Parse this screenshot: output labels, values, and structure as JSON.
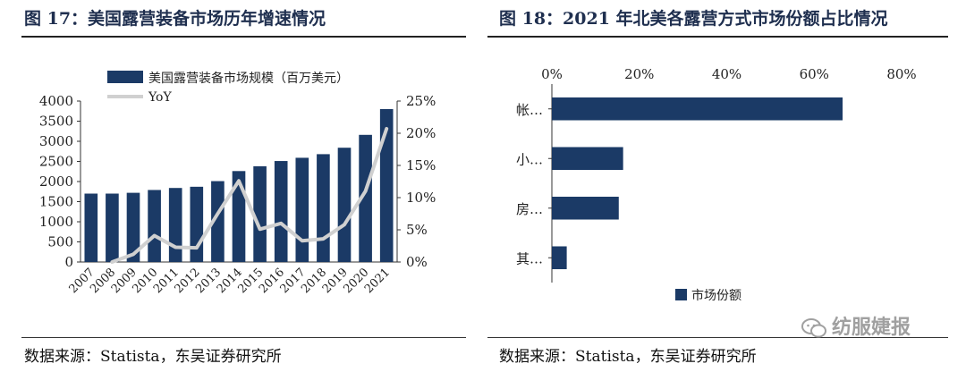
{
  "left": {
    "title": "图 17：美国露营装备市场历年增速情况",
    "source": "数据来源：Statista，东吴证券研究所"
  },
  "right": {
    "title": "图 18：2021 年北美各露营方式市场份额占比情况",
    "source": "数据来源：Statista，东吴证券研究所"
  },
  "watermark": {
    "text": "纺服婕报"
  },
  "chart_data": [
    {
      "type": "bar",
      "categories": [
        "2007",
        "2008",
        "2009",
        "2010",
        "2011",
        "2012",
        "2013",
        "2014",
        "2015",
        "2016",
        "2017",
        "2018",
        "2019",
        "2020",
        "2021"
      ],
      "series": [
        {
          "name": "美国露营装备市场规模（百万美元）",
          "type": "bar",
          "axis": "left",
          "color": "#1b3a66",
          "values": [
            1700,
            1700,
            1720,
            1790,
            1840,
            1870,
            2010,
            2260,
            2380,
            2510,
            2590,
            2680,
            2840,
            3160,
            3800
          ]
        },
        {
          "name": "YoY",
          "type": "line",
          "axis": "right",
          "color": "#d0d0d0",
          "values": [
            null,
            0.0,
            1.2,
            4.1,
            2.3,
            2.2,
            7.5,
            12.6,
            5.1,
            6.0,
            3.3,
            3.6,
            5.8,
            11.0,
            20.7
          ]
        }
      ],
      "y_left": {
        "min": 0,
        "max": 4000,
        "ticks": [
          0,
          500,
          1000,
          1500,
          2000,
          2500,
          3000,
          3500,
          4000
        ],
        "tick_labels": [
          "0",
          "500",
          "1000",
          "1500",
          "2000",
          "2500",
          "3000",
          "3500",
          "4000"
        ]
      },
      "y_right": {
        "min": 0,
        "max": 25,
        "ticks": [
          0,
          5,
          10,
          15,
          20,
          25
        ],
        "tick_labels": [
          "0%",
          "5%",
          "10%",
          "15%",
          "20%",
          "25%"
        ]
      },
      "grid": false,
      "legend": "top-left"
    },
    {
      "type": "bar",
      "orientation": "horizontal",
      "categories": [
        "帐…",
        "小…",
        "房…",
        "其…"
      ],
      "series": [
        {
          "name": "市场份额",
          "color": "#1b3a66",
          "values": [
            66.5,
            16.3,
            15.3,
            3.4
          ]
        }
      ],
      "x_axis": {
        "min": 0,
        "max": 80,
        "ticks": [
          0,
          20,
          40,
          60,
          80
        ],
        "tick_labels": [
          "0%",
          "20%",
          "40%",
          "60%",
          "80%"
        ]
      },
      "grid": false,
      "legend": "bottom-center"
    }
  ]
}
